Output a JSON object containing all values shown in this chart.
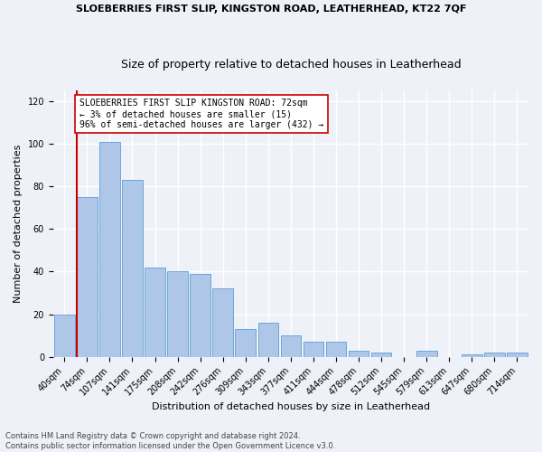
{
  "title": "SLOEBERRIES FIRST SLIP, KINGSTON ROAD, LEATHERHEAD, KT22 7QF",
  "subtitle": "Size of property relative to detached houses in Leatherhead",
  "xlabel": "Distribution of detached houses by size in Leatherhead",
  "ylabel": "Number of detached properties",
  "categories": [
    "40sqm",
    "74sqm",
    "107sqm",
    "141sqm",
    "175sqm",
    "208sqm",
    "242sqm",
    "276sqm",
    "309sqm",
    "343sqm",
    "377sqm",
    "411sqm",
    "444sqm",
    "478sqm",
    "512sqm",
    "545sqm",
    "579sqm",
    "613sqm",
    "647sqm",
    "680sqm",
    "714sqm"
  ],
  "values": [
    20,
    75,
    101,
    83,
    42,
    40,
    39,
    32,
    13,
    16,
    10,
    7,
    7,
    3,
    2,
    0,
    3,
    0,
    1,
    2,
    2
  ],
  "bar_color": "#aec6e8",
  "bar_edge_color": "#5a9fd4",
  "vline_index": 1,
  "vline_color": "#cc0000",
  "annotation_text": "SLOEBERRIES FIRST SLIP KINGSTON ROAD: 72sqm\n← 3% of detached houses are smaller (15)\n96% of semi-detached houses are larger (432) →",
  "annotation_box_color": "#ffffff",
  "annotation_box_edge_color": "#cc0000",
  "ylim": [
    0,
    125
  ],
  "yticks": [
    0,
    20,
    40,
    60,
    80,
    100,
    120
  ],
  "footnote": "Contains HM Land Registry data © Crown copyright and database right 2024.\nContains public sector information licensed under the Open Government Licence v3.0.",
  "background_color": "#eef2f8",
  "grid_color": "#ffffff",
  "title_fontsize": 8,
  "subtitle_fontsize": 9,
  "axis_label_fontsize": 8,
  "tick_fontsize": 7,
  "annotation_fontsize": 7,
  "footnote_fontsize": 6
}
